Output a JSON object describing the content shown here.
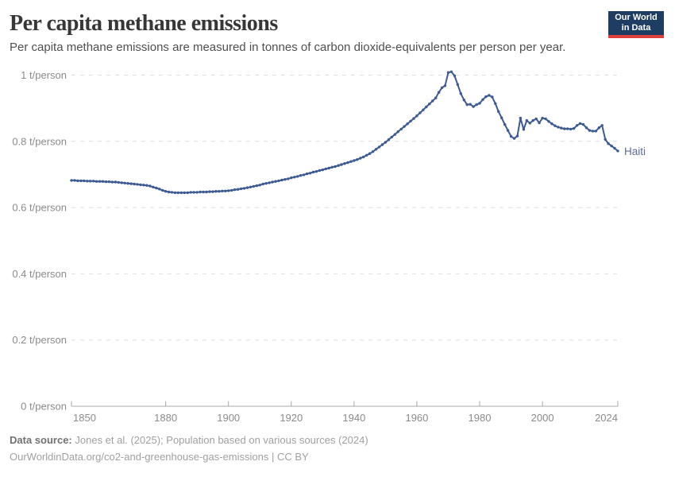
{
  "header": {
    "title": "Per capita methane emissions",
    "subtitle": "Per capita methane emissions are measured in tonnes of carbon dioxide-equivalents per person per year.",
    "logo": {
      "line1": "Our World",
      "line2": "in Data",
      "bg_color": "#1d3d63",
      "bar_color": "#e0403c"
    }
  },
  "chart_data": {
    "type": "line",
    "title": "Per capita methane emissions",
    "unit": "t/person",
    "grid": "horizontal dashed",
    "legend_position": "end-of-line entity label",
    "entity_label": "Haiti",
    "line_color": "#3d5a92",
    "label_color": "#5c6d9e",
    "axis_color": "#a8a8a8",
    "gridline_color": "#dedede",
    "tick_text_color": "#8b8b8b",
    "xlim": [
      1850,
      2024
    ],
    "ylim": [
      0,
      1.05
    ],
    "y_ticks": [
      {
        "value": 0,
        "label": "0 t/person"
      },
      {
        "value": 0.2,
        "label": "0.2 t/person"
      },
      {
        "value": 0.4,
        "label": "0.4 t/person"
      },
      {
        "value": 0.6,
        "label": "0.6 t/person"
      },
      {
        "value": 0.8,
        "label": "0.8 t/person"
      },
      {
        "value": 1,
        "label": "1 t/person"
      }
    ],
    "x_ticks": [
      {
        "year": 1850,
        "label": "1850"
      },
      {
        "year": 1880,
        "label": "1880"
      },
      {
        "year": 1900,
        "label": "1900"
      },
      {
        "year": 1920,
        "label": "1920"
      },
      {
        "year": 1940,
        "label": "1940"
      },
      {
        "year": 1960,
        "label": "1960"
      },
      {
        "year": 1980,
        "label": "1980"
      },
      {
        "year": 2000,
        "label": "2000"
      },
      {
        "year": 2024,
        "label": "2024"
      }
    ],
    "series": [
      {
        "name": "Haiti",
        "start_year": 1850,
        "end_year": 2024,
        "values": [
          0.682,
          0.682,
          0.681,
          0.681,
          0.681,
          0.68,
          0.68,
          0.68,
          0.679,
          0.679,
          0.679,
          0.678,
          0.678,
          0.677,
          0.677,
          0.676,
          0.675,
          0.674,
          0.673,
          0.672,
          0.671,
          0.67,
          0.669,
          0.668,
          0.667,
          0.665,
          0.662,
          0.659,
          0.656,
          0.652,
          0.649,
          0.647,
          0.646,
          0.645,
          0.645,
          0.645,
          0.645,
          0.645,
          0.646,
          0.646,
          0.646,
          0.647,
          0.647,
          0.647,
          0.648,
          0.648,
          0.649,
          0.649,
          0.65,
          0.65,
          0.651,
          0.652,
          0.654,
          0.655,
          0.657,
          0.658,
          0.66,
          0.662,
          0.664,
          0.666,
          0.668,
          0.671,
          0.673,
          0.675,
          0.677,
          0.679,
          0.681,
          0.683,
          0.685,
          0.687,
          0.69,
          0.692,
          0.694,
          0.697,
          0.699,
          0.702,
          0.704,
          0.707,
          0.709,
          0.712,
          0.714,
          0.717,
          0.719,
          0.722,
          0.724,
          0.727,
          0.73,
          0.733,
          0.736,
          0.739,
          0.742,
          0.745,
          0.749,
          0.753,
          0.758,
          0.763,
          0.769,
          0.776,
          0.783,
          0.79,
          0.797,
          0.805,
          0.813,
          0.821,
          0.829,
          0.837,
          0.845,
          0.853,
          0.861,
          0.869,
          0.877,
          0.886,
          0.895,
          0.904,
          0.913,
          0.922,
          0.931,
          0.948,
          0.962,
          0.968,
          1.008,
          1.01,
          0.998,
          0.972,
          0.944,
          0.925,
          0.911,
          0.912,
          0.905,
          0.911,
          0.915,
          0.926,
          0.935,
          0.939,
          0.934,
          0.914,
          0.89,
          0.871,
          0.851,
          0.833,
          0.815,
          0.809,
          0.816,
          0.87,
          0.836,
          0.863,
          0.855,
          0.863,
          0.868,
          0.856,
          0.87,
          0.868,
          0.86,
          0.853,
          0.847,
          0.843,
          0.84,
          0.838,
          0.838,
          0.837,
          0.839,
          0.848,
          0.854,
          0.851,
          0.841,
          0.833,
          0.831,
          0.831,
          0.841,
          0.848,
          0.806,
          0.793,
          0.786,
          0.779,
          0.771
        ]
      }
    ]
  },
  "footer": {
    "source_label": "Data source:",
    "source_text": "Jones et al. (2025); Population based on various sources (2024)",
    "citation": "OurWorldinData.org/co2-and-greenhouse-gas-emissions | CC BY"
  }
}
